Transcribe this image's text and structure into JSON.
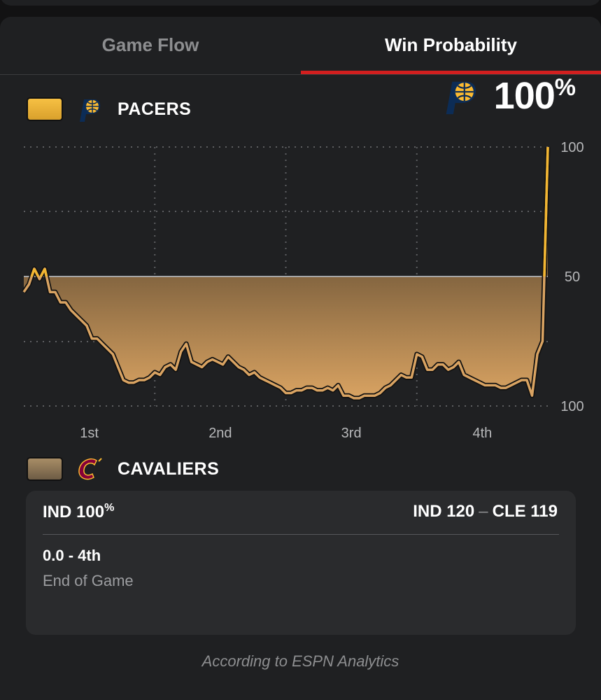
{
  "tabs": [
    {
      "label": "Game Flow",
      "active": false
    },
    {
      "label": "Win Probability",
      "active": true
    }
  ],
  "home_team": {
    "name": "PACERS",
    "abbr": "IND",
    "color": "#f2b632",
    "logo_icon": "pacers-logo-icon"
  },
  "away_team": {
    "name": "CAVALIERS",
    "abbr": "CLE",
    "color": "#a88d66",
    "logo_icon": "cavaliers-logo-icon"
  },
  "headline": {
    "value": "100",
    "unit": "%"
  },
  "chart_data": {
    "type": "area",
    "y_axis_ticks": [
      "100",
      "50",
      "100"
    ],
    "x_tick_labels": [
      "1st",
      "2nd",
      "3rd",
      "4th"
    ],
    "ylim": [
      0,
      100
    ],
    "midline": 50,
    "series": [
      {
        "name": "IND win probability",
        "x": [
          0.0,
          0.01,
          0.02,
          0.03,
          0.04,
          0.05,
          0.06,
          0.07,
          0.08,
          0.09,
          0.1,
          0.11,
          0.12,
          0.13,
          0.14,
          0.15,
          0.16,
          0.17,
          0.18,
          0.19,
          0.2,
          0.21,
          0.22,
          0.23,
          0.24,
          0.25,
          0.26,
          0.27,
          0.28,
          0.29,
          0.3,
          0.31,
          0.32,
          0.33,
          0.34,
          0.35,
          0.36,
          0.37,
          0.38,
          0.39,
          0.4,
          0.41,
          0.42,
          0.43,
          0.44,
          0.45,
          0.46,
          0.47,
          0.48,
          0.49,
          0.5,
          0.51,
          0.52,
          0.53,
          0.54,
          0.55,
          0.56,
          0.57,
          0.58,
          0.59,
          0.6,
          0.61,
          0.62,
          0.63,
          0.64,
          0.65,
          0.66,
          0.67,
          0.68,
          0.69,
          0.7,
          0.71,
          0.72,
          0.73,
          0.74,
          0.75,
          0.76,
          0.77,
          0.78,
          0.79,
          0.8,
          0.81,
          0.82,
          0.83,
          0.84,
          0.85,
          0.86,
          0.87,
          0.88,
          0.89,
          0.9,
          0.91,
          0.92,
          0.93,
          0.94,
          0.95,
          0.96,
          0.97,
          0.98,
          0.99,
          1.0
        ],
        "values": [
          44,
          47,
          53,
          49,
          53,
          44,
          44,
          40,
          40,
          37,
          35,
          33,
          31,
          26,
          26,
          24,
          22,
          20,
          15,
          10,
          9,
          9,
          10,
          10,
          11,
          13,
          12,
          15,
          16,
          14,
          21,
          24,
          17,
          16,
          15,
          17,
          18,
          17,
          16,
          19,
          17,
          15,
          14,
          12,
          13,
          11,
          10,
          9,
          8,
          7,
          5,
          5,
          6,
          6,
          7,
          7,
          6,
          6,
          7,
          6,
          8,
          4,
          4,
          3,
          3,
          4,
          4,
          4,
          5,
          7,
          8,
          10,
          12,
          11,
          11,
          20,
          19,
          14,
          14,
          16,
          16,
          14,
          15,
          17,
          12,
          11,
          10,
          9,
          8,
          8,
          8,
          7,
          7,
          8,
          9,
          10,
          10,
          4,
          20,
          25,
          100
        ]
      }
    ]
  },
  "detail": {
    "left_team": "IND",
    "left_value": "100",
    "left_unit": "%",
    "score_left": "IND 120",
    "score_sep": "–",
    "score_right": "CLE 119",
    "clock": "0.0 - 4th",
    "status": "End of Game"
  },
  "source": "According to ESPN Analytics"
}
